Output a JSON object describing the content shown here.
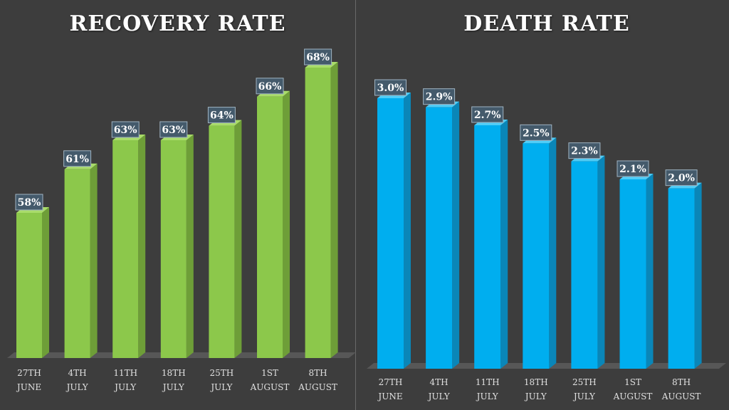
{
  "colors": {
    "background": "#3d3d3d",
    "recovery_front": "#8cc84b",
    "recovery_side": "#6e9e38",
    "recovery_top": "#a9dc6a",
    "death_front": "#00aeef",
    "death_side": "#0a86b8",
    "death_top": "#4fcdf7",
    "floor": "#575757",
    "label_bg": "#445a6b"
  },
  "chart_data": [
    {
      "type": "bar",
      "title": "RECOVERY RATE",
      "categories": [
        [
          "27TH",
          "JUNE"
        ],
        [
          "4TH",
          "JULY"
        ],
        [
          "11TH",
          "JULY"
        ],
        [
          "18TH",
          "JULY"
        ],
        [
          "25TH",
          "JULY"
        ],
        [
          "1ST",
          "AUGUST"
        ],
        [
          "8TH",
          "AUGUST"
        ]
      ],
      "values": [
        58,
        61,
        63,
        63,
        64,
        66,
        68
      ],
      "labels": [
        "58%",
        "61%",
        "63%",
        "63%",
        "64%",
        "66%",
        "68%"
      ],
      "unit": "%",
      "ylim": [
        48,
        70
      ],
      "grid": false
    },
    {
      "type": "bar",
      "title": "DEATH RATE",
      "categories": [
        [
          "27TH",
          "JUNE"
        ],
        [
          "4TH",
          "JULY"
        ],
        [
          "11TH",
          "JULY"
        ],
        [
          "18TH",
          "JULY"
        ],
        [
          "25TH",
          "JULY"
        ],
        [
          "1ST",
          "AUGUST"
        ],
        [
          "8TH",
          "AUGUST"
        ]
      ],
      "values": [
        3.0,
        2.9,
        2.7,
        2.5,
        2.3,
        2.1,
        2.0
      ],
      "labels": [
        "3.0%",
        "2.9%",
        "2.7%",
        "2.5%",
        "2.3%",
        "2.1%",
        "2.0%"
      ],
      "unit": "%",
      "ylim": [
        0,
        3.3
      ],
      "grid": false
    }
  ]
}
